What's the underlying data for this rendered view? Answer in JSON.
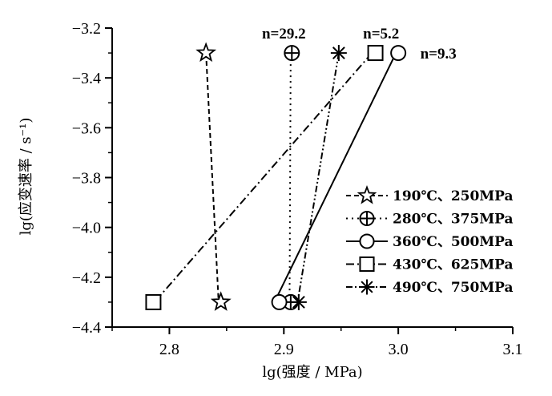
{
  "chart_data": {
    "type": "scatter",
    "xlabel": "lg(强度 / MPa)",
    "ylabel": "lg(应变速率 / s⁻¹)",
    "xlim": [
      2.75,
      3.1
    ],
    "ylim": [
      -4.4,
      -3.2
    ],
    "xticks": [
      "2.8",
      "2.9",
      "3.0",
      "3.1"
    ],
    "yticks": [
      "−3.2",
      "−3.4",
      "−3.6",
      "−3.8",
      "−4.0",
      "−4.2",
      "−4.4"
    ],
    "legend_position": "right",
    "series": [
      {
        "name": "190℃、250MPa",
        "marker": "star",
        "dash": "6,4",
        "color": "#000000",
        "points": [
          {
            "x": 2.832,
            "y": -3.3
          },
          {
            "x": 2.845,
            "y": -4.3
          }
        ],
        "fit": [
          [
            2.832,
            -3.3
          ],
          [
            2.843,
            -4.3
          ]
        ]
      },
      {
        "name": "280℃、375MPa",
        "marker": "circle-plus",
        "dash": "2,5",
        "color": "#000000",
        "points": [
          {
            "x": 2.907,
            "y": -3.3
          },
          {
            "x": 2.906,
            "y": -4.3
          }
        ],
        "fit": [
          [
            2.906,
            -3.3
          ],
          [
            2.905,
            -4.3
          ]
        ]
      },
      {
        "name": "360℃、500MPa",
        "marker": "circle",
        "dash": "",
        "color": "#000000",
        "points": [
          {
            "x": 3.0,
            "y": -3.3
          },
          {
            "x": 2.896,
            "y": -4.3
          }
        ],
        "fit": [
          [
            2.998,
            -3.3
          ],
          [
            2.895,
            -4.27
          ]
        ]
      },
      {
        "name": "430℃、625MPa",
        "marker": "square",
        "dash": "10,4,2,4",
        "color": "#000000",
        "points": [
          {
            "x": 2.98,
            "y": -3.3
          },
          {
            "x": 2.786,
            "y": -4.3
          }
        ],
        "fit": [
          [
            2.977,
            -3.3
          ],
          [
            2.787,
            -4.3
          ]
        ]
      },
      {
        "name": "490℃、750MPa",
        "marker": "asterisk",
        "dash": "8,3,2,3,2,3",
        "color": "#000000",
        "points": [
          {
            "x": 2.948,
            "y": -3.3
          },
          {
            "x": 2.913,
            "y": -4.3
          }
        ],
        "fit": [
          [
            2.948,
            -3.3
          ],
          [
            2.912,
            -4.3
          ]
        ]
      }
    ],
    "annotations": [
      {
        "text": "n=29.2",
        "x": 2.9,
        "y": -3.22
      },
      {
        "text": "n=5.2",
        "x": 2.985,
        "y": -3.22
      },
      {
        "text": "n=9.3",
        "x": 3.035,
        "y": -3.3
      }
    ]
  }
}
